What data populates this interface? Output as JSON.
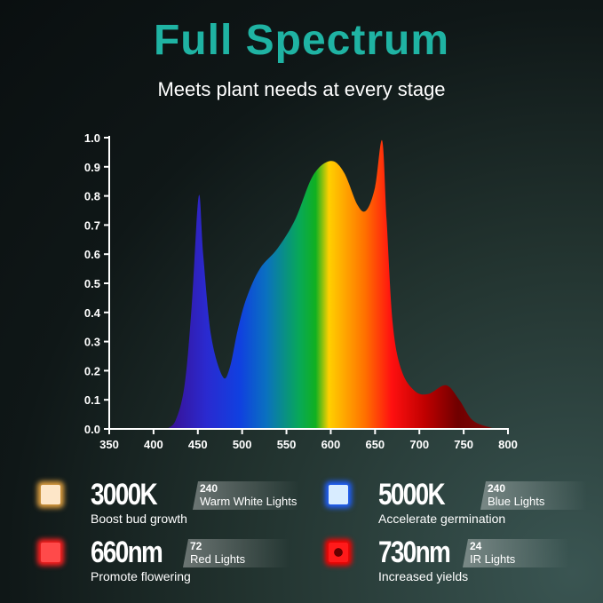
{
  "header": {
    "title": "Full Spectrum",
    "subtitle": "Meets plant needs at every stage"
  },
  "chart_data": {
    "type": "area",
    "xlim": [
      350,
      800
    ],
    "ylim": [
      0,
      1.0
    ],
    "x_ticks": [
      "350",
      "400",
      "450",
      "500",
      "550",
      "600",
      "650",
      "700",
      "750",
      "800"
    ],
    "y_ticks": [
      "0.0",
      "0.1",
      "0.2",
      "0.3",
      "0.4",
      "0.5",
      "0.6",
      "0.7",
      "0.8",
      "0.9",
      "1.0"
    ],
    "grid": false,
    "fill": "visible spectrum gradient (violet to deep red)",
    "points": [
      [
        415,
        0
      ],
      [
        425,
        0.03
      ],
      [
        435,
        0.15
      ],
      [
        443,
        0.42
      ],
      [
        451,
        0.8
      ],
      [
        456,
        0.6
      ],
      [
        465,
        0.32
      ],
      [
        478,
        0.18
      ],
      [
        486,
        0.21
      ],
      [
        495,
        0.34
      ],
      [
        505,
        0.45
      ],
      [
        520,
        0.55
      ],
      [
        540,
        0.62
      ],
      [
        560,
        0.72
      ],
      [
        580,
        0.87
      ],
      [
        600,
        0.92
      ],
      [
        615,
        0.88
      ],
      [
        630,
        0.77
      ],
      [
        640,
        0.75
      ],
      [
        650,
        0.83
      ],
      [
        658,
        0.99
      ],
      [
        663,
        0.72
      ],
      [
        670,
        0.36
      ],
      [
        680,
        0.2
      ],
      [
        695,
        0.13
      ],
      [
        710,
        0.12
      ],
      [
        730,
        0.15
      ],
      [
        745,
        0.1
      ],
      [
        760,
        0.03
      ],
      [
        780,
        0.005
      ],
      [
        790,
        0
      ]
    ]
  },
  "features": [
    {
      "value": "3000K",
      "count": "240",
      "label": "Warm White Lights",
      "desc": "Boost bud growth",
      "color": "#fde6c8",
      "glow": "#e0a040"
    },
    {
      "value": "5000K",
      "count": "240",
      "label": "Blue Lights",
      "desc": "Accelerate germination",
      "color": "#d8ecff",
      "glow": "#2060ff"
    },
    {
      "value": "660nm",
      "count": "72",
      "label": "Red Lights",
      "desc": "Promote flowering",
      "color": "#ff4a4a",
      "glow": "#ff2020"
    },
    {
      "value": "730nm",
      "count": "24",
      "label": "IR Lights",
      "desc": "Increased yields",
      "color": "#ff1a1a",
      "glow": "#ff0000"
    }
  ]
}
